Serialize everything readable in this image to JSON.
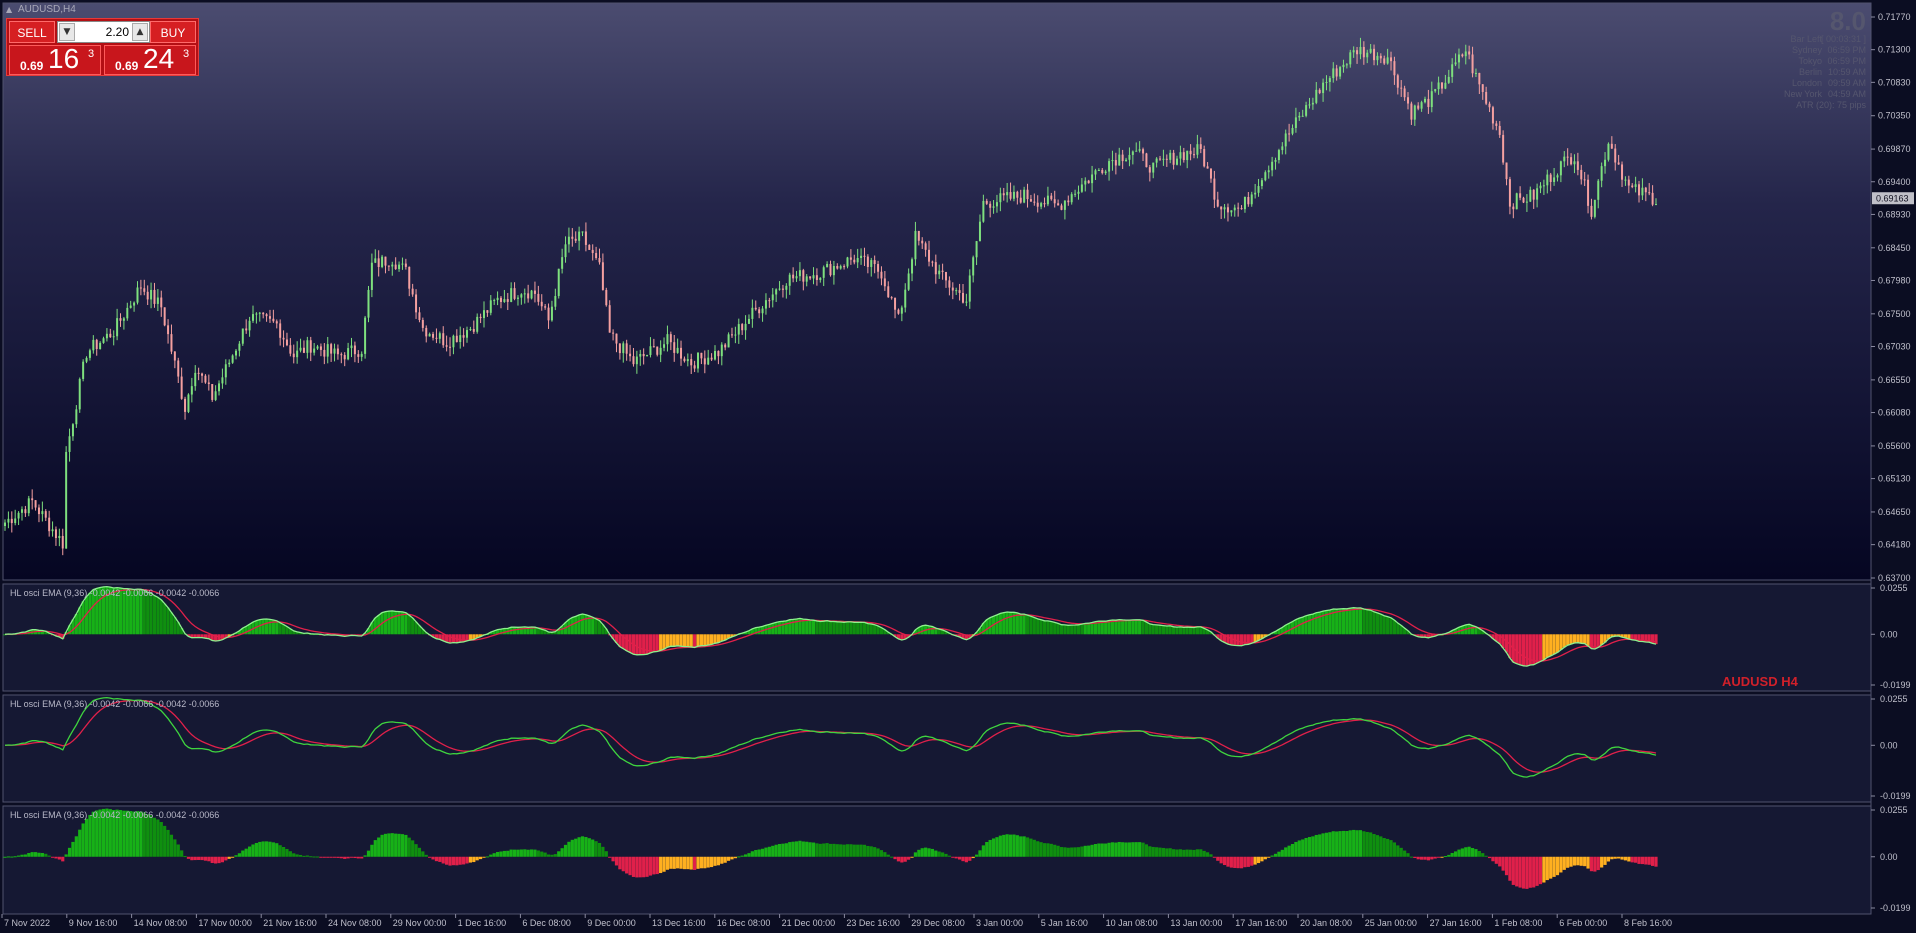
{
  "window": {
    "title": "AUDUSD,H4"
  },
  "trade_panel": {
    "sell_label": "SELL",
    "buy_label": "BUY",
    "lot_value": "2.20",
    "sell_price": {
      "prefix": "0.69",
      "big": "16",
      "sup": "3"
    },
    "buy_price": {
      "prefix": "0.69",
      "big": "24",
      "sup": "3"
    }
  },
  "info_panel": {
    "spread": "8.0",
    "rows": [
      {
        "label": "Bar Left",
        "value": "[ 00:03:31 ]"
      },
      {
        "label": "Sydney",
        "value": "06:59 PM"
      },
      {
        "label": "Tokyo",
        "value": "06:59 PM"
      },
      {
        "label": "Berlin",
        "value": "10:59 AM"
      },
      {
        "label": "London",
        "value": "09:59 AM"
      },
      {
        "label": "New York",
        "value": "04:59 AM"
      }
    ],
    "atr": "ATR (20): 75 pips"
  },
  "price_axis": {
    "ticks": [
      "0.71770",
      "0.71300",
      "0.70830",
      "0.70350",
      "0.69870",
      "0.69400",
      "0.68930",
      "0.68450",
      "0.67980",
      "0.67500",
      "0.67030",
      "0.66550",
      "0.66080",
      "0.65600",
      "0.65130",
      "0.64650",
      "0.64180",
      "0.63700"
    ],
    "current_price": "0.69163"
  },
  "indicator_panels": [
    {
      "label": "HL osci EMA (9,36) -0.0042 -0.0066 -0.0042 -0.0066",
      "ticks": [
        "0.0255",
        "0.00",
        "-0.0199"
      ],
      "watermark": "AUDUSD H4"
    },
    {
      "label": "HL osci EMA (9,36) -0.0042 -0.0066 -0.0042 -0.0066",
      "ticks": [
        "0.0255",
        "0.00",
        "-0.0199"
      ]
    },
    {
      "label": "HL osci EMA (9,36) -0.0042 -0.0066 -0.0042 -0.0066",
      "ticks": [
        "0.0255",
        "0.00",
        "-0.0199"
      ]
    }
  ],
  "time_axis": [
    "7 Nov 2022",
    "9 Nov 16:00",
    "14 Nov 08:00",
    "17 Nov 00:00",
    "21 Nov 16:00",
    "24 Nov 08:00",
    "29 Nov 00:00",
    "1 Dec 16:00",
    "6 Dec 08:00",
    "9 Dec 00:00",
    "13 Dec 16:00",
    "16 Dec 08:00",
    "21 Dec 00:00",
    "23 Dec 16:00",
    "29 Dec 08:00",
    "3 Jan 00:00",
    "5 Jan 16:00",
    "10 Jan 08:00",
    "13 Jan 00:00",
    "17 Jan 16:00",
    "20 Jan 08:00",
    "25 Jan 00:00",
    "27 Jan 16:00",
    "1 Feb 08:00",
    "6 Feb 00:00",
    "8 Feb 16:00"
  ],
  "colors": {
    "bull_candle": "#7ee07e",
    "bear_candle": "#f5a0a0",
    "osc_positive": "#17b117",
    "osc_negative": "#e0204a",
    "osc_orange": "#ffb020",
    "watermark": "#d0202a"
  },
  "chart_data": {
    "type": "candlestick",
    "symbol": "AUDUSD",
    "timeframe": "H4",
    "ylim": [
      0.637,
      0.7195
    ],
    "close_path": [
      [
        0,
        0.645
      ],
      [
        8,
        0.648
      ],
      [
        14,
        0.644
      ],
      [
        17,
        0.642
      ],
      [
        18,
        0.655
      ],
      [
        24,
        0.6695
      ],
      [
        32,
        0.6725
      ],
      [
        40,
        0.679
      ],
      [
        46,
        0.676
      ],
      [
        53,
        0.6615
      ],
      [
        56,
        0.6675
      ],
      [
        61,
        0.663
      ],
      [
        65,
        0.667
      ],
      [
        72,
        0.6745
      ],
      [
        80,
        0.6735
      ],
      [
        85,
        0.669
      ],
      [
        90,
        0.6705
      ],
      [
        98,
        0.669
      ],
      [
        105,
        0.67
      ],
      [
        108,
        0.682
      ],
      [
        114,
        0.683
      ],
      [
        118,
        0.681
      ],
      [
        123,
        0.673
      ],
      [
        130,
        0.671
      ],
      [
        137,
        0.673
      ],
      [
        145,
        0.677
      ],
      [
        152,
        0.6785
      ],
      [
        156,
        0.678
      ],
      [
        160,
        0.674
      ],
      [
        165,
        0.685
      ],
      [
        170,
        0.686
      ],
      [
        175,
        0.6815
      ],
      [
        178,
        0.672
      ],
      [
        185,
        0.668
      ],
      [
        195,
        0.671
      ],
      [
        202,
        0.668
      ],
      [
        210,
        0.6695
      ],
      [
        220,
        0.675
      ],
      [
        230,
        0.68
      ],
      [
        240,
        0.681
      ],
      [
        250,
        0.683
      ],
      [
        258,
        0.681
      ],
      [
        263,
        0.674
      ],
      [
        268,
        0.686
      ],
      [
        276,
        0.68
      ],
      [
        283,
        0.677
      ],
      [
        288,
        0.691
      ],
      [
        300,
        0.692
      ],
      [
        310,
        0.6905
      ],
      [
        318,
        0.694
      ],
      [
        325,
        0.697
      ],
      [
        332,
        0.6985
      ],
      [
        338,
        0.696
      ],
      [
        346,
        0.698
      ],
      [
        352,
        0.6985
      ],
      [
        357,
        0.691
      ],
      [
        364,
        0.69
      ],
      [
        370,
        0.695
      ],
      [
        378,
        0.701
      ],
      [
        388,
        0.708
      ],
      [
        398,
        0.713
      ],
      [
        407,
        0.712
      ],
      [
        414,
        0.704
      ],
      [
        420,
        0.706
      ],
      [
        426,
        0.71
      ],
      [
        430,
        0.713
      ],
      [
        433,
        0.709
      ],
      [
        440,
        0.701
      ],
      [
        443,
        0.691
      ],
      [
        450,
        0.692
      ],
      [
        457,
        0.696
      ],
      [
        462,
        0.698
      ],
      [
        467,
        0.69
      ],
      [
        472,
        0.7
      ],
      [
        478,
        0.693
      ],
      [
        486,
        0.6916
      ]
    ]
  }
}
